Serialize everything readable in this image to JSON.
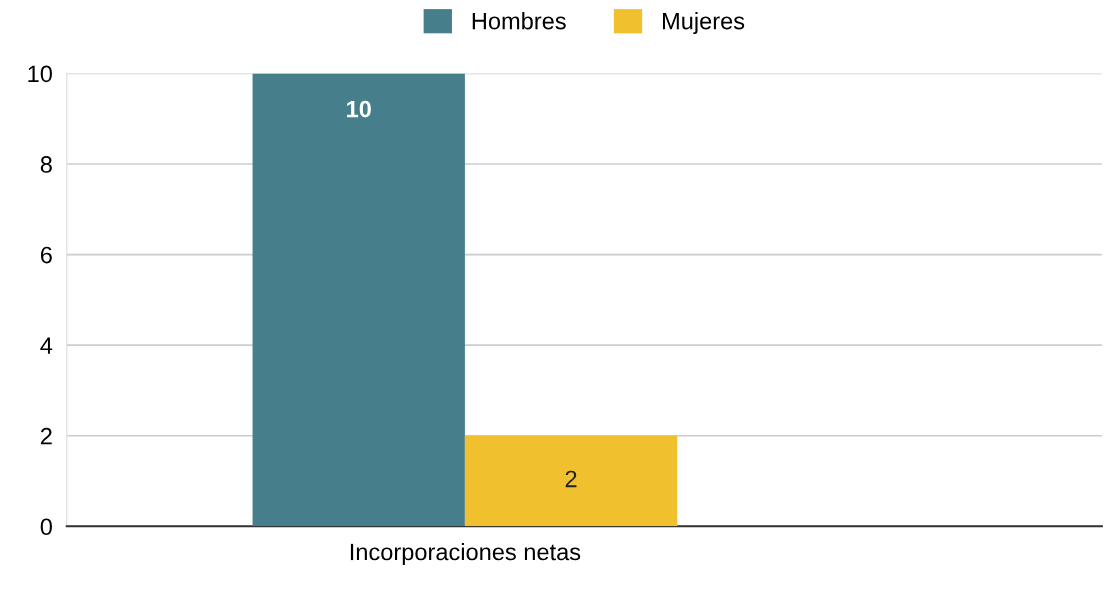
{
  "chart_data": {
    "type": "bar",
    "xlabel": null,
    "categories": [
      "Incorporaciones netas"
    ],
    "series": [
      {
        "name": "Hombres",
        "color": "#467e8c",
        "values": [
          10
        ]
      },
      {
        "name": "Mujeres",
        "color": "#f0c02f",
        "values": [
          2
        ]
      }
    ],
    "ylim": [
      0,
      10
    ],
    "yticks": [
      0,
      2,
      4,
      6,
      8,
      10
    ],
    "grid": "y",
    "legend": "top",
    "data_labels": true
  }
}
